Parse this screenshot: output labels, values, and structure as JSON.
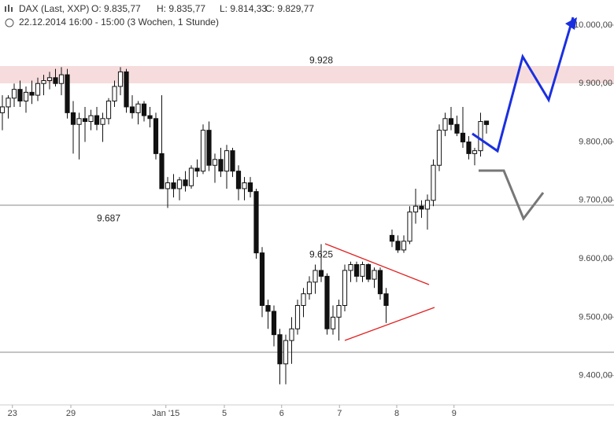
{
  "chart_data": {
    "type": "candlestick",
    "instrument": "DAX (Last, XXP)",
    "ohlc_labels": [
      "O: 9.835,77",
      "H: 9.835,77",
      "L: 9.814,33",
      "C: 9.829,77"
    ],
    "subtitle": "22.12.2014 16:00 - 15:00 (3 Wochen, 1 Stunde)",
    "xlim": [
      -0.4,
      103.6
    ],
    "ylim": [
      9343,
      10043
    ],
    "xticks": [
      {
        "value": 1.7,
        "label": "23"
      },
      {
        "value": 11.6,
        "label": "29"
      },
      {
        "value": 27.7,
        "label": "Jan '15"
      },
      {
        "value": 37.6,
        "label": "5"
      },
      {
        "value": 47.3,
        "label": "6"
      },
      {
        "value": 57.1,
        "label": "7"
      },
      {
        "value": 66.8,
        "label": "8"
      },
      {
        "value": 76.5,
        "label": "9"
      }
    ],
    "yticks": [
      {
        "value": 9400,
        "label": "9.400,00"
      },
      {
        "value": 9500,
        "label": "9.500,00"
      },
      {
        "value": 9600,
        "label": "9.600,00"
      },
      {
        "value": 9700,
        "label": "9.700,00"
      },
      {
        "value": 9800,
        "label": "9.800,00"
      },
      {
        "value": 9900,
        "label": "9.900,00"
      },
      {
        "value": 10000,
        "label": "10.000,00"
      }
    ],
    "annotations": [
      {
        "text": "9.928",
        "value": 9928,
        "x": 54
      },
      {
        "text": "9.687",
        "value": 9687,
        "x": 18
      },
      {
        "text": "9.625",
        "value": 9625,
        "x": 54
      }
    ],
    "open": [
      9850,
      9860,
      9875,
      9890,
      9870,
      9885,
      9880,
      9900,
      9905,
      9910,
      9900,
      9915,
      9850,
      9830,
      9840,
      9835,
      9845,
      9830,
      9840,
      9870,
      9895,
      9920,
      9860,
      9850,
      9865,
      9845,
      9840,
      9780,
      9720,
      9730,
      9720,
      9735,
      9725,
      9755,
      9750,
      9820,
      9760,
      9770,
      9750,
      9785,
      9750,
      9720,
      9730,
      9715,
      9610,
      9520,
      9510,
      9470,
      9420,
      9460,
      9480,
      9520,
      9540,
      9560,
      9580,
      9570,
      9480,
      9500,
      9520,
      9580,
      9590,
      9570,
      9590,
      9565,
      9580,
      9540,
      9640,
      9630,
      9615,
      9630,
      9680,
      9690,
      9685,
      9700,
      9760,
      9820,
      9840,
      9830,
      9815,
      9800,
      9780,
      9785,
      9835.77
    ],
    "high": [
      9880,
      9880,
      9900,
      9905,
      9895,
      9905,
      9910,
      9915,
      9920,
      9925,
      9928,
      9925,
      9870,
      9850,
      9860,
      9855,
      9860,
      9850,
      9875,
      9905,
      9928,
      9925,
      9880,
      9870,
      9870,
      9860,
      9850,
      9880,
      9740,
      9745,
      9740,
      9750,
      9760,
      9770,
      9830,
      9835,
      9780,
      9790,
      9795,
      9790,
      9760,
      9740,
      9740,
      9720,
      9620,
      9530,
      9520,
      9480,
      9470,
      9500,
      9530,
      9550,
      9570,
      9590,
      9625,
      9575,
      9520,
      9530,
      9590,
      9595,
      9595,
      9595,
      9592,
      9585,
      9585,
      9550,
      9650,
      9640,
      9640,
      9690,
      9720,
      9700,
      9710,
      9770,
      9830,
      9850,
      9860,
      9845,
      9860,
      9810,
      9790,
      9850,
      9835.77
    ],
    "low": [
      9820,
      9840,
      9860,
      9860,
      9850,
      9865,
      9870,
      9880,
      9890,
      9895,
      9880,
      9840,
      9780,
      9770,
      9800,
      9820,
      9820,
      9800,
      9830,
      9860,
      9880,
      9850,
      9840,
      9830,
      9835,
      9825,
      9770,
      9720,
      9687,
      9705,
      9700,
      9715,
      9720,
      9740,
      9745,
      9750,
      9730,
      9740,
      9720,
      9740,
      9700,
      9700,
      9705,
      9600,
      9500,
      9480,
      9450,
      9385,
      9385,
      9420,
      9470,
      9500,
      9530,
      9540,
      9560,
      9470,
      9470,
      9460,
      9510,
      9560,
      9560,
      9560,
      9560,
      9550,
      9530,
      9490,
      9620,
      9610,
      9610,
      9625,
      9660,
      9670,
      9650,
      9690,
      9750,
      9810,
      9820,
      9810,
      9790,
      9770,
      9760,
      9775,
      9814.33
    ],
    "close": [
      9860,
      9875,
      9890,
      9870,
      9885,
      9880,
      9900,
      9905,
      9910,
      9900,
      9915,
      9850,
      9830,
      9840,
      9835,
      9845,
      9830,
      9840,
      9870,
      9895,
      9920,
      9860,
      9850,
      9865,
      9845,
      9840,
      9780,
      9720,
      9730,
      9720,
      9735,
      9725,
      9755,
      9750,
      9820,
      9760,
      9770,
      9750,
      9785,
      9750,
      9720,
      9730,
      9715,
      9610,
      9520,
      9510,
      9470,
      9420,
      9460,
      9480,
      9520,
      9540,
      9560,
      9580,
      9570,
      9480,
      9500,
      9520,
      9580,
      9590,
      9570,
      9590,
      9565,
      9580,
      9540,
      9520,
      9630,
      9615,
      9630,
      9680,
      9690,
      9685,
      9700,
      9760,
      9820,
      9840,
      9830,
      9815,
      9800,
      9780,
      9785,
      9835,
      9829.77
    ]
  }
}
